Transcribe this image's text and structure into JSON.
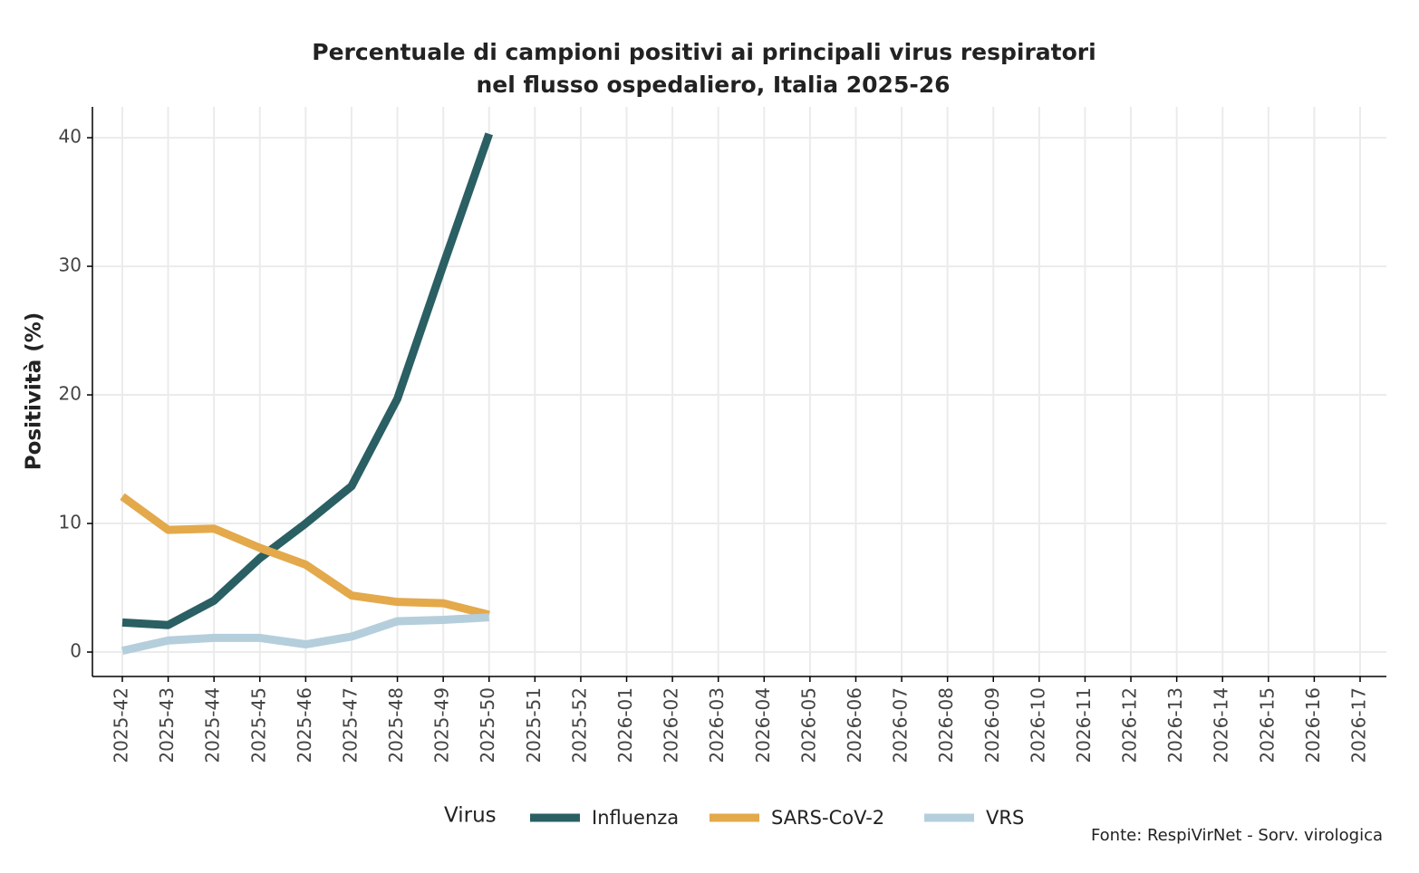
{
  "chart_data": {
    "type": "line",
    "title": [
      "Percentuale di campioni positivi ai principali virus respiratori",
      "nel flusso ospedaliero, Italia 2025-26"
    ],
    "y_label": "Positività (%)",
    "legend_title": "Virus",
    "source": "Fonte: RespiVirNet - Sorv. virologica",
    "categories": [
      "2025-42",
      "2025-43",
      "2025-44",
      "2025-45",
      "2025-46",
      "2025-47",
      "2025-48",
      "2025-49",
      "2025-50",
      "2025-51",
      "2025-52",
      "2026-01",
      "2026-02",
      "2026-03",
      "2026-04",
      "2026-05",
      "2026-06",
      "2026-07",
      "2026-08",
      "2026-09",
      "2026-10",
      "2026-11",
      "2026-12",
      "2026-13",
      "2026-14",
      "2026-15",
      "2026-16",
      "2026-17"
    ],
    "series": [
      {
        "name": "Influenza",
        "color": "#2a5f63",
        "values": [
          2.3,
          2.1,
          4.0,
          7.3,
          10.0,
          12.9,
          19.7,
          30.1,
          40.3,
          null,
          null,
          null,
          null,
          null,
          null,
          null,
          null,
          null,
          null,
          null,
          null,
          null,
          null,
          null,
          null,
          null,
          null,
          null
        ]
      },
      {
        "name": "SARS-CoV-2",
        "color": "#e3a94b",
        "values": [
          12.1,
          9.5,
          9.6,
          8.1,
          6.8,
          4.4,
          3.9,
          3.8,
          2.9,
          null,
          null,
          null,
          null,
          null,
          null,
          null,
          null,
          null,
          null,
          null,
          null,
          null,
          null,
          null,
          null,
          null,
          null,
          null
        ]
      },
      {
        "name": "VRS",
        "color": "#b5cedc",
        "values": [
          0.1,
          0.9,
          1.1,
          1.1,
          0.6,
          1.2,
          2.4,
          2.5,
          2.7,
          null,
          null,
          null,
          null,
          null,
          null,
          null,
          null,
          null,
          null,
          null,
          null,
          null,
          null,
          null,
          null,
          null,
          null,
          null
        ]
      }
    ],
    "ylim": [
      -1.9,
      42.4
    ],
    "yticks": [
      0,
      10,
      20,
      30,
      40
    ],
    "grid": true
  }
}
